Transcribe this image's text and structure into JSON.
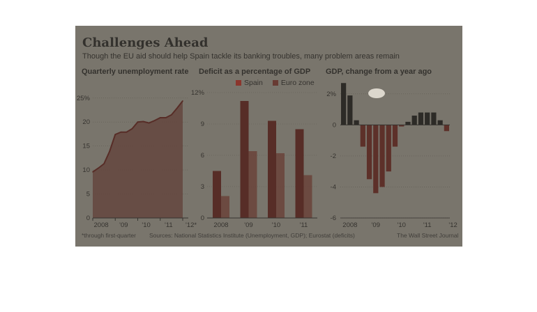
{
  "header": {
    "title": "Challenges Ahead",
    "subtitle": "Though the EU aid should help Spain tackle its banking troubles, many problem areas remain"
  },
  "footer": {
    "note": "*through first-quarter",
    "sources": "Sources: National Statistics Institute (Unemployment, GDP); Eurostat (deficits)",
    "credit": "The Wall Street Journal"
  },
  "colors": {
    "spain": "#e0281e",
    "spain_dark": "#6e1410",
    "euro_zone": "#93342c",
    "gdp_positive": "#111111",
    "gdp_negative": "#7a1b15",
    "area_fill": "#8a4c44"
  },
  "chart_data": [
    {
      "type": "line",
      "title": "Quarterly unemployment rate",
      "x_tick_labels": [
        "2008",
        "'09",
        "'10",
        "'11",
        "'12*"
      ],
      "y_tick_labels": [
        "0",
        "5",
        "10",
        "15",
        "20",
        "25%"
      ],
      "ylim": [
        0,
        27
      ],
      "grid": true,
      "series": [
        {
          "values": [
            9.6,
            10.4,
            11.3,
            13.9,
            17.4,
            17.9,
            17.9,
            18.6,
            20.0,
            20.1,
            19.8,
            20.3,
            20.9,
            20.9,
            21.5,
            22.9,
            24.4
          ]
        }
      ]
    },
    {
      "type": "bar",
      "title": "Deficit as a percentage of GDP",
      "categories": [
        "2008",
        "'09",
        "'10",
        "'11"
      ],
      "y_tick_labels": [
        "0",
        "3",
        "6",
        "9",
        "12%"
      ],
      "ylim": [
        0,
        12
      ],
      "legend": "top",
      "grid": true,
      "series": [
        {
          "name": "Spain",
          "values": [
            4.5,
            11.2,
            9.3,
            8.5
          ]
        },
        {
          "name": "Euro zone",
          "values": [
            2.1,
            6.4,
            6.2,
            4.1
          ]
        }
      ]
    },
    {
      "type": "bar",
      "title": "GDP, change from a year ago",
      "x_tick_labels": [
        "2008",
        "'09",
        "'10",
        "'11",
        "'12"
      ],
      "y_tick_labels": [
        "-6",
        "-4",
        "-2",
        "0",
        "2%"
      ],
      "ylim": [
        -6,
        2.8
      ],
      "grid": true,
      "values": [
        2.7,
        1.9,
        0.3,
        -1.4,
        -3.5,
        -4.4,
        -4.0,
        -3.0,
        -1.4,
        -0.1,
        0.2,
        0.6,
        0.8,
        0.8,
        0.8,
        0.3,
        -0.4
      ]
    }
  ]
}
